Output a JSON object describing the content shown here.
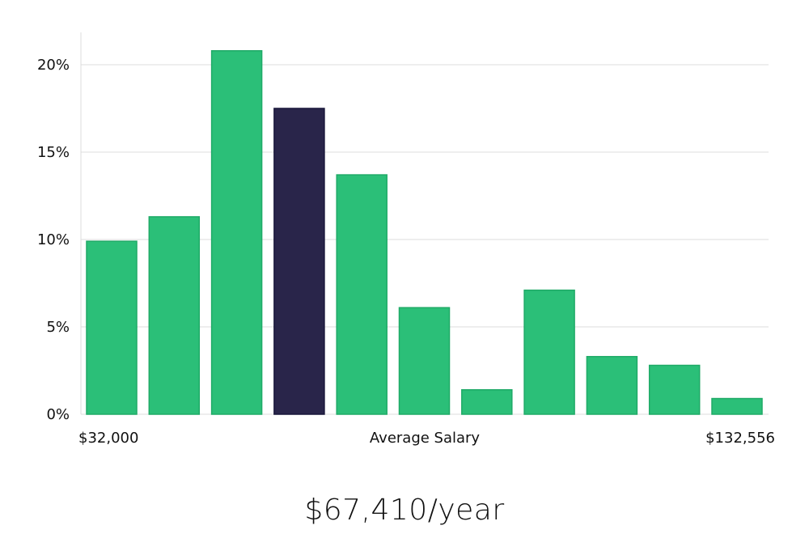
{
  "chart_data": {
    "type": "bar",
    "title": "",
    "xlabel": "Average Salary",
    "ylabel": "",
    "x_range_labels": {
      "min": "$32,000",
      "max": "$132,556"
    },
    "ylim": [
      0,
      22
    ],
    "yticks": [
      0,
      5,
      10,
      15,
      20
    ],
    "ytick_suffix": "%",
    "grid": true,
    "highlight_index": 3,
    "colors": {
      "bar": "#2bbf78",
      "bar_edge": "#1faa67",
      "highlight": "#29254a",
      "highlight_edge": "#18163a"
    },
    "values": [
      9.9,
      11.3,
      20.8,
      17.5,
      13.7,
      6.1,
      1.4,
      7.1,
      3.3,
      2.8,
      0.9
    ]
  },
  "summary": {
    "salary": "$67,410/year"
  }
}
